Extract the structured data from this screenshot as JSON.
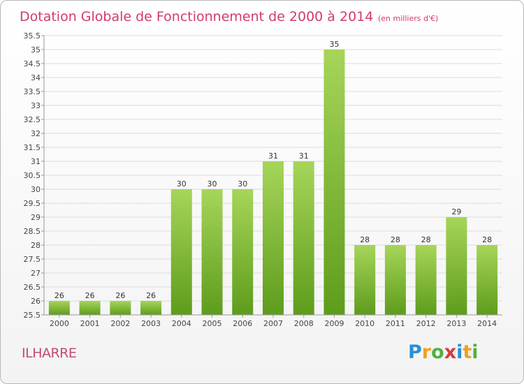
{
  "title": "Dotation Globale de Fonctionnement de 2000 à 2014",
  "unit": "(en milliers d'€)",
  "commune": "ILHARRE",
  "logo": {
    "letters": [
      "P",
      "r",
      "o",
      "x",
      "i",
      "t",
      "i"
    ],
    "colors": [
      "#2a8fd6",
      "#f0a020",
      "#52b043",
      "#d63b3b",
      "#2a8fd6",
      "#f0a020",
      "#52b043"
    ]
  },
  "colors": {
    "bar_top": "#a6d55a",
    "bar_bottom": "#5e9c1c",
    "accent": "#d23b6a"
  },
  "chart_data": {
    "type": "bar",
    "categories": [
      "2000",
      "2001",
      "2002",
      "2003",
      "2004",
      "2005",
      "2006",
      "2007",
      "2008",
      "2009",
      "2010",
      "2011",
      "2012",
      "2013",
      "2014"
    ],
    "values": [
      26,
      26,
      26,
      26,
      30,
      30,
      30,
      31,
      31,
      35,
      28,
      28,
      28,
      29,
      28
    ],
    "value_labels": [
      "26",
      "26",
      "26",
      "26",
      "30",
      "30",
      "30",
      "31",
      "31",
      "35",
      "28",
      "28",
      "28",
      "29",
      "28"
    ],
    "ylim": [
      25.5,
      35.5
    ],
    "yticks": [
      "25.5",
      "26",
      "26.5",
      "27",
      "27.5",
      "28",
      "28.5",
      "29",
      "29.5",
      "30",
      "30.5",
      "31",
      "31.5",
      "32",
      "32.5",
      "33",
      "33.5",
      "34",
      "34.5",
      "35",
      "35.5"
    ],
    "grid": true
  }
}
